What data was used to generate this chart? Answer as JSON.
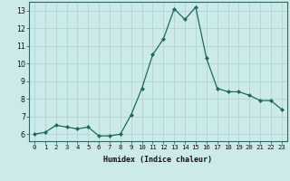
{
  "xlabel": "Humidex (Indice chaleur)",
  "ylabel": "",
  "x": [
    0,
    1,
    2,
    3,
    4,
    5,
    6,
    7,
    8,
    9,
    10,
    11,
    12,
    13,
    14,
    15,
    16,
    17,
    18,
    19,
    20,
    21,
    22,
    23
  ],
  "y": [
    6.0,
    6.1,
    6.5,
    6.4,
    6.3,
    6.4,
    5.9,
    5.9,
    6.0,
    7.1,
    8.6,
    10.5,
    11.4,
    13.1,
    12.5,
    13.2,
    10.3,
    8.6,
    8.4,
    8.4,
    8.2,
    7.9,
    7.9,
    7.4
  ],
  "line_color": "#1a6b5a",
  "marker_color": "#1a6b5a",
  "bg_color": "#cdeaea",
  "grid_color": "#b0d4d4",
  "ylim": [
    5.6,
    13.5
  ],
  "xlim": [
    -0.5,
    23.5
  ],
  "yticks": [
    6,
    7,
    8,
    9,
    10,
    11,
    12,
    13
  ],
  "xticks": [
    0,
    1,
    2,
    3,
    4,
    5,
    6,
    7,
    8,
    9,
    10,
    11,
    12,
    13,
    14,
    15,
    16,
    17,
    18,
    19,
    20,
    21,
    22,
    23
  ],
  "tick_fontsize": 5.2,
  "xlabel_fontsize": 6.0,
  "ylabel_fontsize": 6.0,
  "linewidth": 0.9,
  "markersize": 2.0
}
